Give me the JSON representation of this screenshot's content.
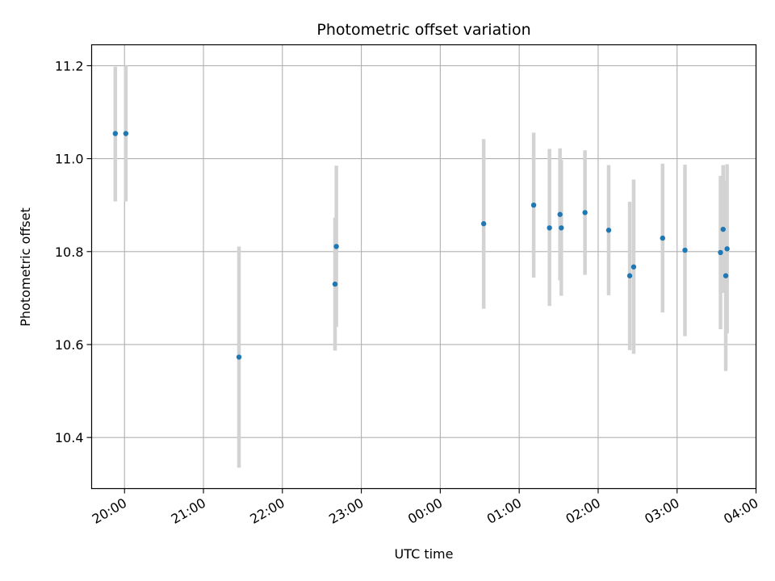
{
  "chart_data": {
    "type": "scatter",
    "title": "Photometric offset variation",
    "xlabel": "UTC time",
    "ylabel": "Photometric offset",
    "x_ticks": [
      "20:00",
      "21:00",
      "22:00",
      "23:00",
      "00:00",
      "01:00",
      "02:00",
      "03:00",
      "04:00"
    ],
    "y_ticks": [
      "10.4",
      "10.6",
      "10.8",
      "11.0",
      "11.2"
    ],
    "x_range": [
      "19:35",
      "04:00"
    ],
    "y_range": [
      10.29,
      11.245
    ],
    "grid": true,
    "colors": {
      "marker": "#1f77b4",
      "errorbar": "#d3d3d3",
      "grid": "#b0b0b0"
    },
    "points": [
      {
        "x": "19:53",
        "y": 11.054,
        "err": [
          10.908,
          11.198
        ]
      },
      {
        "x": "20:01",
        "y": 11.054,
        "err": [
          10.908,
          11.2
        ]
      },
      {
        "x": "21:27",
        "y": 10.573,
        "err": [
          10.335,
          10.811
        ]
      },
      {
        "x": "22:40",
        "y": 10.73,
        "err": [
          10.587,
          10.873
        ]
      },
      {
        "x": "22:41",
        "y": 10.811,
        "err": [
          10.638,
          10.985
        ]
      },
      {
        "x": "00:33",
        "y": 10.86,
        "err": [
          10.677,
          11.042
        ]
      },
      {
        "x": "01:11",
        "y": 10.9,
        "err": [
          10.744,
          11.056
        ]
      },
      {
        "x": "01:23",
        "y": 10.851,
        "err": [
          10.683,
          11.021
        ]
      },
      {
        "x": "01:31",
        "y": 10.88,
        "err": [
          10.738,
          11.022
        ]
      },
      {
        "x": "01:32",
        "y": 10.851,
        "err": [
          10.705,
          10.997
        ]
      },
      {
        "x": "01:50",
        "y": 10.884,
        "err": [
          10.75,
          11.018
        ]
      },
      {
        "x": "02:08",
        "y": 10.846,
        "err": [
          10.706,
          10.986
        ]
      },
      {
        "x": "02:24",
        "y": 10.748,
        "err": [
          10.588,
          10.907
        ]
      },
      {
        "x": "02:27",
        "y": 10.767,
        "err": [
          10.58,
          10.955
        ]
      },
      {
        "x": "02:49",
        "y": 10.829,
        "err": [
          10.669,
          10.989
        ]
      },
      {
        "x": "03:06",
        "y": 10.803,
        "err": [
          10.618,
          10.987
        ]
      },
      {
        "x": "03:33",
        "y": 10.798,
        "err": [
          10.633,
          10.963
        ]
      },
      {
        "x": "03:35",
        "y": 10.848,
        "err": [
          10.711,
          10.986
        ]
      },
      {
        "x": "03:37",
        "y": 10.748,
        "err": [
          10.543,
          10.953
        ]
      },
      {
        "x": "03:38",
        "y": 10.806,
        "err": [
          10.624,
          10.988
        ]
      }
    ]
  }
}
